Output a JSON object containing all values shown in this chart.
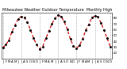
{
  "title": "Milwaukee Weather Outdoor Temperature  Monthly High",
  "values": [
    29,
    34,
    42,
    57,
    68,
    79,
    83,
    81,
    73,
    60,
    46,
    34,
    27,
    31,
    45,
    58,
    70,
    80,
    85,
    83,
    74,
    61,
    44,
    32,
    28,
    33,
    44,
    59,
    69,
    81,
    84,
    82,
    72,
    59,
    45,
    31
  ],
  "x_labels": [
    "J",
    "F",
    "M",
    "A",
    "M",
    "J",
    "J",
    "A",
    "S",
    "O",
    "N",
    "D",
    "J",
    "F",
    "M",
    "A",
    "M",
    "J",
    "J",
    "A",
    "S",
    "O",
    "N",
    "D",
    "J",
    "F",
    "M",
    "A",
    "M",
    "J",
    "J",
    "A",
    "S",
    "O",
    "N",
    "D"
  ],
  "ylim": [
    10,
    90
  ],
  "yticks": [
    20,
    30,
    40,
    50,
    60,
    70,
    80
  ],
  "ytick_labels": [
    "20",
    "30",
    "40",
    "50",
    "60",
    "70",
    "80"
  ],
  "vlines": [
    0,
    6,
    12,
    18,
    24,
    30,
    35
  ],
  "line_color": "#cc0000",
  "marker_color": "#000000",
  "background_color": "#ffffff",
  "grid_color": "#888888",
  "title_fontsize": 3.5,
  "tick_fontsize": 2.8
}
